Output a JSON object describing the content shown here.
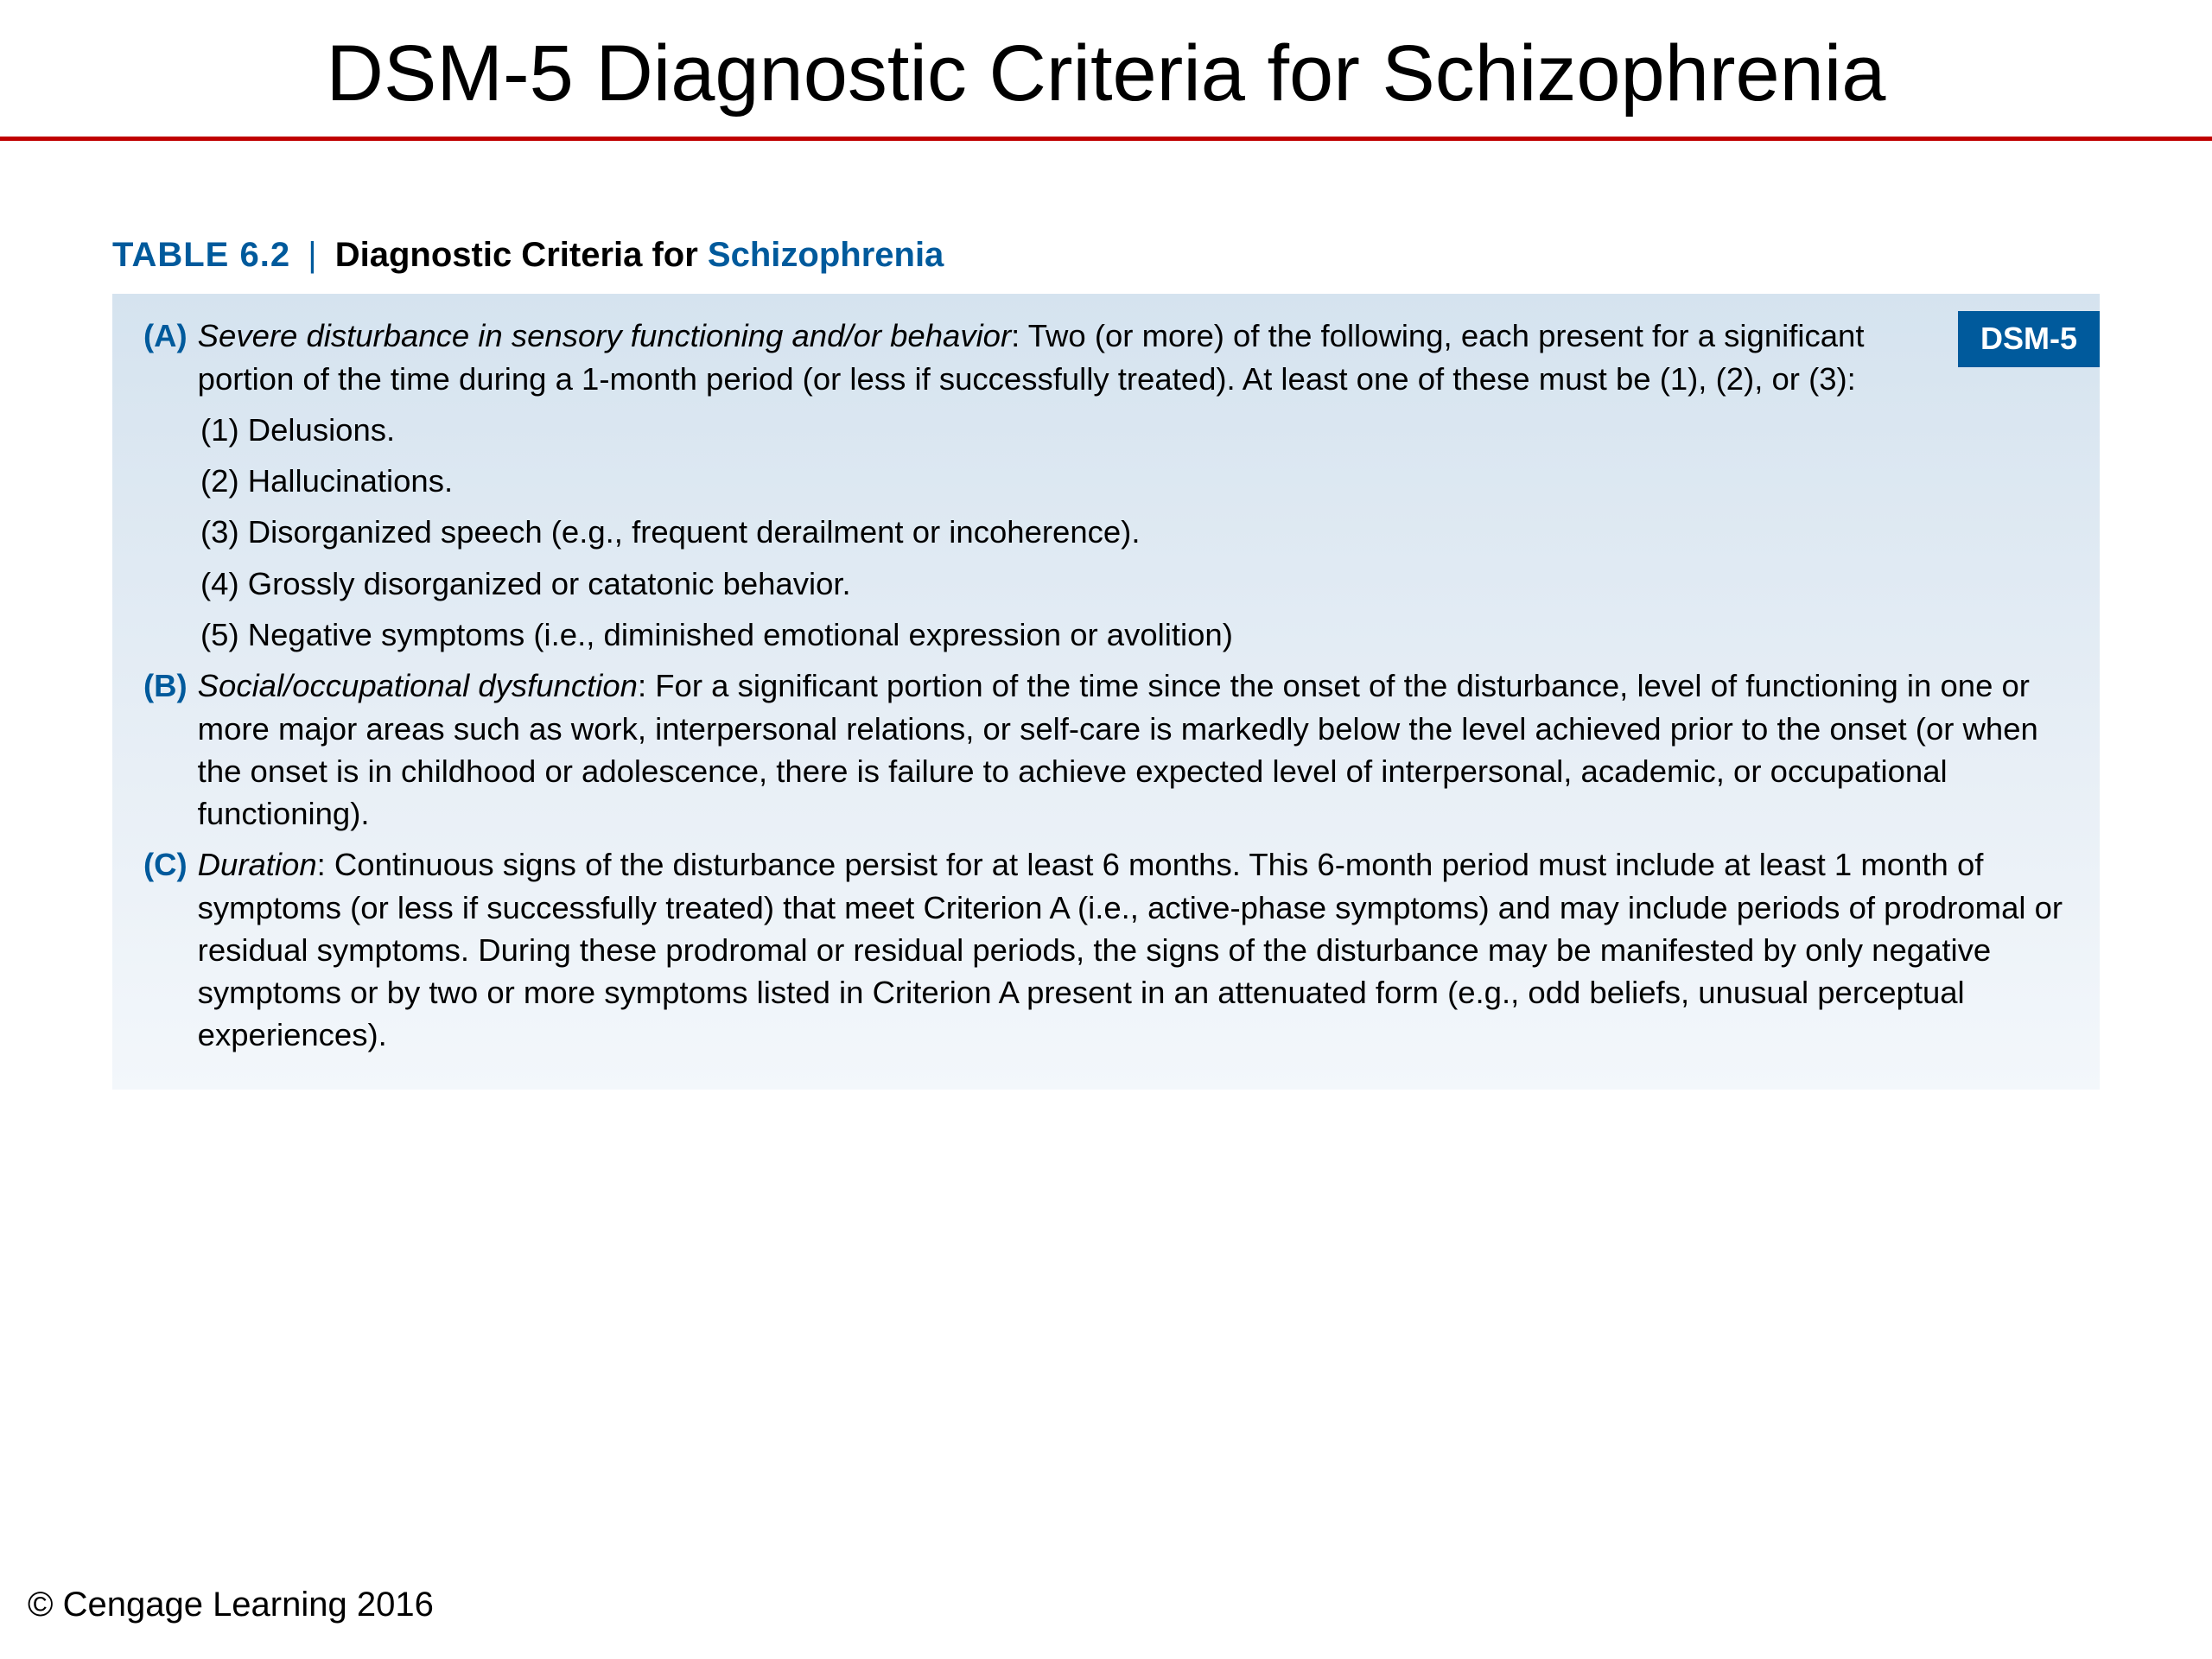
{
  "slide": {
    "title": "DSM-5 Diagnostic Criteria for Schizophrenia"
  },
  "colors": {
    "rule": "#c00000",
    "brand_blue": "#005a9c",
    "box_bg_top": "#d5e3ef",
    "box_bg_bottom": "#f3f7fb",
    "text": "#000000",
    "white": "#ffffff"
  },
  "table": {
    "label": "TABLE 6.2",
    "title_black": "Diagnostic Criteria for ",
    "title_highlight": "Schizophrenia",
    "badge": "DSM-5"
  },
  "criteria": {
    "A": {
      "label": "(A)",
      "lead_italic": "Severe disturbance in sensory functioning and/or behavior",
      "lead_rest": ": Two (or more) of the following, each present for a significant portion of the time during a 1-month period (or less if successfully treated). At least one of these must be (1), (2), or (3):",
      "items": [
        "(1) Delusions.",
        "(2) Hallucinations.",
        "(3) Disorganized speech (e.g., frequent derailment or incoherence).",
        "(4) Grossly disorganized or catatonic behavior.",
        "(5) Negative symptoms (i.e., diminished emotional expression or avolition)"
      ]
    },
    "B": {
      "label": "(B)",
      "lead_italic": "Social/occupational dysfunction",
      "lead_rest": ": For a significant portion of the time since the onset of the disturbance, level of functioning in one or more major areas such as work, interpersonal relations, or self-care is markedly below the level achieved prior to the onset (or when the onset is in childhood or adolescence, there is failure to achieve expected level of interpersonal, academic, or occupational functioning)."
    },
    "C": {
      "label": "(C)",
      "lead_italic": "Duration",
      "lead_rest": ": Continuous signs of the disturbance persist for at least 6 months. This 6-month period must include at least 1 month of symptoms (or less if successfully treated) that meet Criterion A (i.e., active-phase symptoms) and may include periods of prodromal or residual symptoms. During these prodromal or residual periods, the signs of the disturbance may be manifested by only negative symptoms or by two or more symptoms listed in Criterion A present in an attenuated form (e.g., odd beliefs, unusual perceptual experiences)."
    }
  },
  "copyright": "© Cengage Learning 2016"
}
